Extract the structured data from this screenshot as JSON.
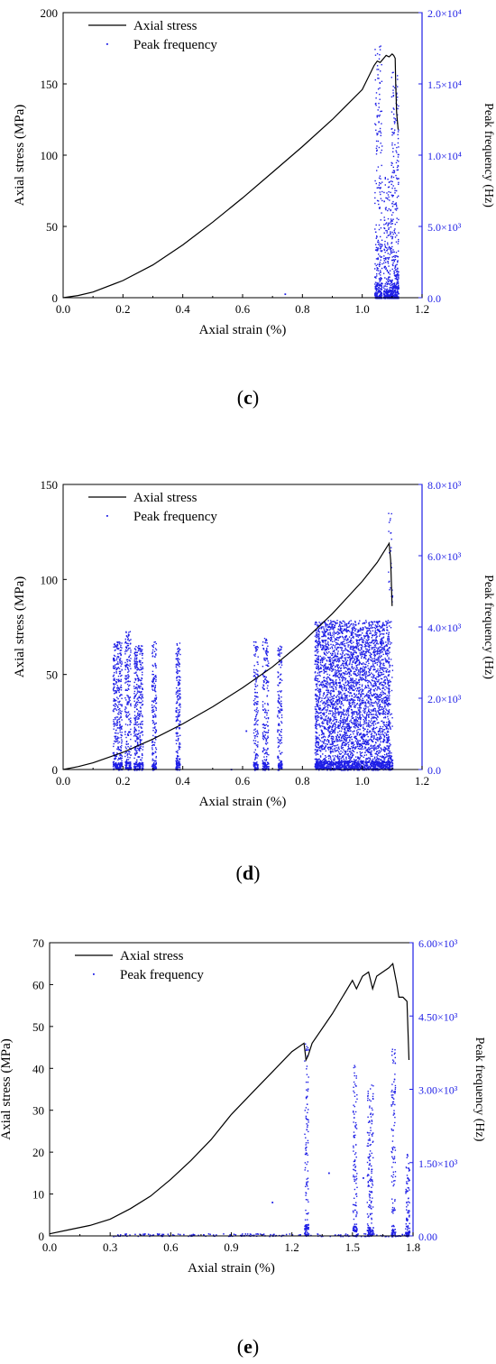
{
  "colors": {
    "stress": "#000000",
    "frequency": "#1f1fe6",
    "axis_left": "#000000",
    "axis_right": "#1f1fe6"
  },
  "chart_data": [
    {
      "type": "line+scatter",
      "panel_label": "c",
      "xlabel": "Axial strain (%)",
      "ylabel": "Axial stress (MPa)",
      "y2label": "Peak frequency (Hz)",
      "xlim": [
        0,
        1.2
      ],
      "ylim": [
        0,
        200
      ],
      "y2lim": [
        0,
        20000
      ],
      "xticks": [
        "0.0",
        "0.2",
        "0.4",
        "0.6",
        "0.8",
        "1.0",
        "1.2"
      ],
      "yticks": [
        "0",
        "50",
        "100",
        "150",
        "200"
      ],
      "y2ticks": [
        "0.0",
        "5.0×10³",
        "1.0×10⁴",
        "1.5×10⁴",
        "2.0×10⁴"
      ],
      "legend": {
        "position": "top-left",
        "entries": [
          "Axial stress",
          "Peak frequency"
        ]
      },
      "series": [
        {
          "name": "Axial stress",
          "kind": "line",
          "x": [
            0,
            0.05,
            0.1,
            0.2,
            0.3,
            0.4,
            0.5,
            0.6,
            0.7,
            0.8,
            0.9,
            1.0,
            1.04,
            1.05,
            1.06,
            1.08,
            1.09,
            1.1,
            1.105,
            1.11,
            1.112,
            1.115,
            1.12
          ],
          "y": [
            0,
            1.5,
            4,
            12,
            23,
            37,
            53,
            70,
            88,
            106,
            125,
            146,
            163,
            166,
            165,
            170,
            169,
            171,
            170,
            168,
            150,
            130,
            118
          ]
        },
        {
          "name": "Peak frequency",
          "kind": "scatter-band",
          "bands": [
            {
              "x": [
                1.04,
                1.065
              ],
              "ymax": 17800,
              "density": 0.6
            },
            {
              "x": [
                1.07,
                1.095
              ],
              "ymax": 9000,
              "density": 0.5
            },
            {
              "x": [
                1.095,
                1.12
              ],
              "ymax": 16000,
              "density": 0.8
            }
          ],
          "isolated": [
            {
              "x": 0.74,
              "y": 300
            }
          ]
        }
      ]
    },
    {
      "type": "line+scatter",
      "panel_label": "d",
      "xlabel": "Axial strain (%)",
      "ylabel": "Axial stress (MPa)",
      "y2label": "Peak frequency (Hz)",
      "xlim": [
        0,
        1.2
      ],
      "ylim": [
        0,
        150
      ],
      "y2lim": [
        0,
        8000
      ],
      "xticks": [
        "0.0",
        "0.2",
        "0.4",
        "0.6",
        "0.8",
        "1.0",
        "1.2"
      ],
      "yticks": [
        "0",
        "50",
        "100",
        "150"
      ],
      "y2ticks": [
        "0.0",
        "2.0×10³",
        "4.0×10³",
        "6.0×10³",
        "8.0×10³"
      ],
      "legend": {
        "position": "top-left",
        "entries": [
          "Axial stress",
          "Peak frequency"
        ]
      },
      "series": [
        {
          "name": "Axial stress",
          "kind": "line",
          "x": [
            0,
            0.05,
            0.1,
            0.2,
            0.3,
            0.4,
            0.5,
            0.6,
            0.7,
            0.8,
            0.9,
            1.0,
            1.05,
            1.09,
            1.095,
            1.098,
            1.1
          ],
          "y": [
            0,
            1.5,
            3.5,
            9,
            16,
            24,
            33,
            43,
            54,
            67,
            82,
            99,
            109,
            119,
            110,
            95,
            86
          ]
        },
        {
          "name": "Peak frequency",
          "kind": "scatter-band",
          "bands": [
            {
              "x": [
                0.165,
                0.195
              ],
              "ymax": 3600,
              "density": 0.7
            },
            {
              "x": [
                0.205,
                0.225
              ],
              "ymax": 3900,
              "density": 0.6
            },
            {
              "x": [
                0.235,
                0.265
              ],
              "ymax": 3500,
              "density": 0.7
            },
            {
              "x": [
                0.295,
                0.31
              ],
              "ymax": 3600,
              "density": 0.6
            },
            {
              "x": [
                0.375,
                0.39
              ],
              "ymax": 3600,
              "density": 0.7
            },
            {
              "x": [
                0.635,
                0.65
              ],
              "ymax": 3600,
              "density": 0.5
            },
            {
              "x": [
                0.665,
                0.685
              ],
              "ymax": 3700,
              "density": 0.5
            },
            {
              "x": [
                0.715,
                0.73
              ],
              "ymax": 3500,
              "density": 0.5
            },
            {
              "x": [
                0.84,
                1.09
              ],
              "ymax": 4200,
              "density": 1.0
            },
            {
              "x": [
                1.085,
                1.1
              ],
              "ymax": 7700,
              "density": 0.3
            }
          ],
          "isolated": [
            {
              "x": 0.61,
              "y": 1100
            },
            {
              "x": 0.56,
              "y": 20
            }
          ]
        }
      ]
    },
    {
      "type": "line+scatter",
      "panel_label": "e",
      "xlabel": "Axial strain (%)",
      "ylabel": "Axial stress (MPa)",
      "y2label": "Peak frequency (Hz)",
      "xlim": [
        0,
        1.8
      ],
      "ylim": [
        0,
        70
      ],
      "y2lim": [
        0,
        6000
      ],
      "xticks": [
        "0.0",
        "0.3",
        "0.6",
        "0.9",
        "1.2",
        "1.5",
        "1.8"
      ],
      "yticks": [
        "0",
        "10",
        "20",
        "30",
        "40",
        "50",
        "60",
        "70"
      ],
      "y2ticks": [
        "0.00",
        "1.50×10³",
        "3.00×10³",
        "4.50×10³",
        "6.00×10³"
      ],
      "legend": {
        "position": "top-left",
        "entries": [
          "Axial stress",
          "Peak frequency"
        ]
      },
      "series": [
        {
          "name": "Axial stress",
          "kind": "line",
          "x": [
            0,
            0.1,
            0.2,
            0.3,
            0.4,
            0.5,
            0.6,
            0.7,
            0.8,
            0.9,
            1.0,
            1.1,
            1.2,
            1.26,
            1.27,
            1.28,
            1.3,
            1.4,
            1.5,
            1.52,
            1.55,
            1.58,
            1.6,
            1.62,
            1.65,
            1.68,
            1.7,
            1.72,
            1.73,
            1.75,
            1.77,
            1.78
          ],
          "y": [
            0.5,
            1.5,
            2.5,
            4,
            6.5,
            9.5,
            13.5,
            18,
            23,
            29,
            34,
            39,
            44,
            46,
            42,
            43,
            46,
            53,
            61,
            59,
            62,
            63,
            59,
            62,
            63,
            64,
            65,
            60,
            57,
            57,
            56,
            42
          ]
        },
        {
          "name": "Peak frequency",
          "kind": "scatter-band",
          "bands": [
            {
              "x": [
                1.26,
                1.28
              ],
              "ymax": 4100,
              "density": 0.4
            },
            {
              "x": [
                1.5,
                1.52
              ],
              "ymax": 3500,
              "density": 0.4
            },
            {
              "x": [
                1.57,
                1.6
              ],
              "ymax": 3100,
              "density": 0.4
            },
            {
              "x": [
                1.69,
                1.71
              ],
              "ymax": 3900,
              "density": 0.4
            },
            {
              "x": [
                1.76,
                1.78
              ],
              "ymax": 1700,
              "density": 0.3
            }
          ],
          "isolated": [
            {
              "x": 1.38,
              "y": 1300
            },
            {
              "x": 1.55,
              "y": 1200
            },
            {
              "x": 1.1,
              "y": 700
            }
          ]
        }
      ]
    }
  ]
}
